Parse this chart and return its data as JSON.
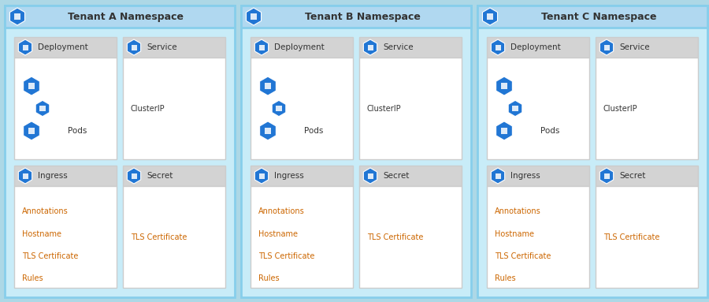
{
  "namespaces": [
    "Tenant A Namespace",
    "Tenant B Namespace",
    "Tenant C Namespace"
  ],
  "bg_color": "#add8e6",
  "ns_fill": "#c8ecf8",
  "ns_border": "#87ceeb",
  "header_fill": "#b0d8f0",
  "card_header_fill": "#d3d3d3",
  "card_body_fill": "#ffffff",
  "card_border": "#cccccc",
  "blue": "#2176d4",
  "text_color": "#333333",
  "orange_text": "#cc6600",
  "title_fontsize": 9,
  "label_fontsize": 7.5,
  "content_fontsize": 7,
  "cards": [
    {
      "label": "Deployment",
      "content": [
        "pods_icon"
      ],
      "icon": "deploy"
    },
    {
      "label": "Service",
      "content": [
        "ClusterIP"
      ],
      "icon": "service"
    },
    {
      "label": "Ingress",
      "content": [
        "Annotations",
        "Hostname",
        "TLS Certificate",
        "Rules"
      ],
      "icon": "ingress"
    },
    {
      "label": "Secret",
      "content": [
        "TLS Certificate"
      ],
      "icon": "secret"
    }
  ]
}
